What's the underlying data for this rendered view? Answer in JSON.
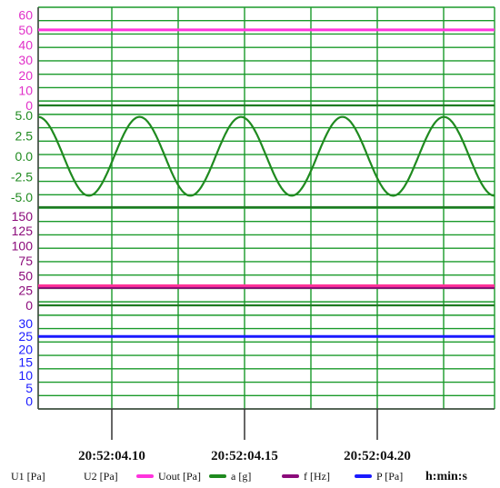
{
  "chart_data": {
    "type": "line",
    "grid": true,
    "colors": {
      "grid": "#1a9a2a",
      "uout": "#ff33dd",
      "a": "#1f8a1f",
      "f": "#8b0a7a",
      "p": "#1a1aff",
      "u1u2": "#ff3399"
    },
    "panels": [
      {
        "id": "uout",
        "ylim": [
          0,
          65
        ],
        "ticks": [
          "60",
          "50",
          "40",
          "30",
          "20",
          "10",
          "0"
        ],
        "tick_values": [
          60,
          50,
          40,
          30,
          20,
          10,
          0
        ],
        "tick_color": "#e02fc8"
      },
      {
        "id": "a",
        "ylim": [
          -6.2,
          6.2
        ],
        "ticks": [
          "5.0",
          "2.5",
          "0.0",
          "-2.5",
          "-5.0"
        ],
        "tick_values": [
          5.0,
          2.5,
          0.0,
          -2.5,
          -5.0
        ],
        "tick_color": "#1f8a1f"
      },
      {
        "id": "f",
        "ylim": [
          0,
          165
        ],
        "ticks": [
          "150",
          "125",
          "100",
          "75",
          "50",
          "25",
          "0"
        ],
        "tick_values": [
          150,
          125,
          100,
          75,
          50,
          25,
          0
        ],
        "tick_color": "#8b0a7a"
      },
      {
        "id": "p",
        "ylim": [
          -3,
          37
        ],
        "ticks": [
          "30",
          "25",
          "20",
          "15",
          "10",
          "5",
          "0"
        ],
        "tick_values": [
          30,
          25,
          20,
          15,
          10,
          5,
          0
        ],
        "tick_color": "#1a1aff"
      }
    ],
    "series": [
      {
        "name": "Uout [Pa]",
        "panel": "uout",
        "kind": "constant",
        "value": 50,
        "color": "#ff33dd"
      },
      {
        "name": "a [g]",
        "panel": "a",
        "kind": "sine",
        "amplitude": 4.8,
        "cycles": 4.5,
        "color": "#1f8a1f"
      },
      {
        "name": "f [Hz]",
        "panel": "f",
        "kind": "constant",
        "value": 30,
        "color": "#8b0a7a"
      },
      {
        "name": "P [Pa]",
        "panel": "p",
        "kind": "constant",
        "value": 25,
        "color": "#1a1aff"
      },
      {
        "name": "U1 [Pa]",
        "panel": "f",
        "kind": "constant",
        "value": 33,
        "color": "#ff3399"
      }
    ],
    "time_ticks": [
      "20:52:04.10",
      "20:52:04.15",
      "20:52:04.20"
    ],
    "legend": [
      {
        "label": "U1 [Pa]",
        "color": ""
      },
      {
        "label": "U2 [Pa]",
        "color": ""
      },
      {
        "label": "Uout [Pa]",
        "color": "#ff33dd"
      },
      {
        "label": "a [g]",
        "color": "#1f8a1f"
      },
      {
        "label": "f [Hz]",
        "color": "#8b0a7a"
      },
      {
        "label": "P [Pa]",
        "color": "#1a1aff"
      }
    ],
    "time_unit": "h:min:s"
  }
}
